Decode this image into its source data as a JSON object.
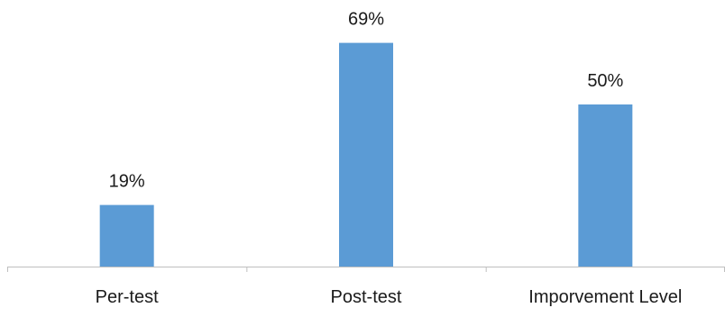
{
  "chart_data": {
    "type": "bar",
    "categories": [
      "Per-test",
      "Post-test",
      "Imporvement Level"
    ],
    "values": [
      19,
      69,
      50
    ],
    "data_labels": [
      "19%",
      "69%",
      "50%"
    ],
    "ylim": [
      0,
      80
    ],
    "grid": false,
    "legend": "none",
    "colors": {
      "bar": "#5b9bd5",
      "axis": "#bfbfbf",
      "text": "#1a1a1a"
    }
  }
}
